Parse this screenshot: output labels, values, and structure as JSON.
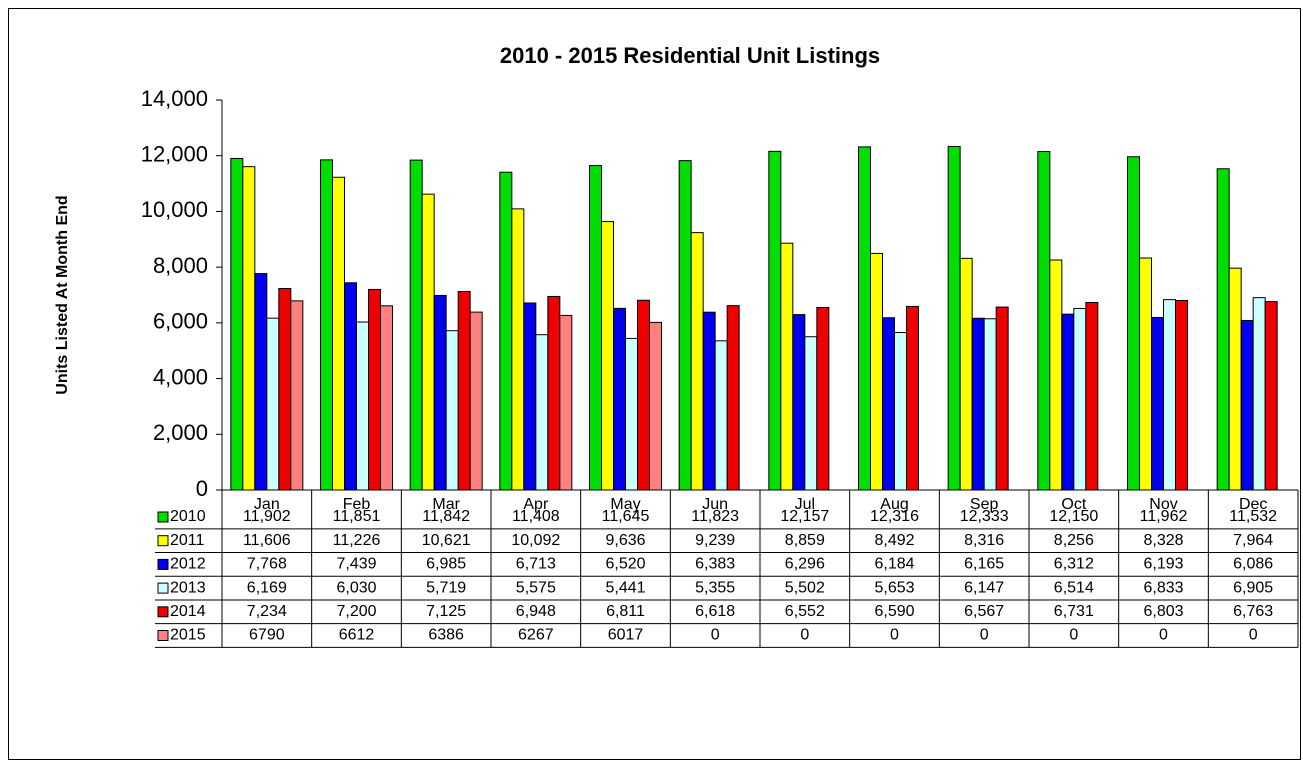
{
  "chart_data": {
    "type": "bar",
    "title": "2010 - 2015 Residential Unit Listings",
    "y_label": "Units Listed At Month End",
    "categories": [
      "Jan",
      "Feb",
      "Mar",
      "Apr",
      "May",
      "Jun",
      "Jul",
      "Aug",
      "Sep",
      "Oct",
      "Nov",
      "Dec"
    ],
    "ylim": [
      0,
      14000
    ],
    "yticks": [
      0,
      {
        "value": 2000,
        "label": "2,000"
      },
      {
        "value": 4000,
        "label": "4,000"
      },
      {
        "value": 6000,
        "label": "6,000"
      },
      {
        "value": 8000,
        "label": "8,000"
      },
      {
        "value": 10000,
        "label": "10,000"
      },
      {
        "value": 12000,
        "label": "12,000"
      },
      {
        "value": 14000,
        "label": "14,000"
      }
    ],
    "series": [
      {
        "name": "2010",
        "color": "#00dd00",
        "values": [
          11902,
          11851,
          11842,
          11408,
          11645,
          11823,
          12157,
          12316,
          12333,
          12150,
          11962,
          11532
        ],
        "value_labels": [
          "11,902",
          "11,851",
          "11,842",
          "11,408",
          "11,645",
          "11,823",
          "12,157",
          "12,316",
          "12,333",
          "12,150",
          "11,962",
          "11,532"
        ]
      },
      {
        "name": "2011",
        "color": "#ffff00",
        "values": [
          11606,
          11226,
          10621,
          10092,
          9636,
          9239,
          8859,
          8492,
          8316,
          8256,
          8328,
          7964
        ],
        "value_labels": [
          "11,606",
          "11,226",
          "10,621",
          "10,092",
          "9,636",
          "9,239",
          "8,859",
          "8,492",
          "8,316",
          "8,256",
          "8,328",
          "7,964"
        ]
      },
      {
        "name": "2012",
        "color": "#0000ee",
        "values": [
          7768,
          7439,
          6985,
          6713,
          6520,
          6383,
          6296,
          6184,
          6165,
          6312,
          6193,
          6086
        ],
        "value_labels": [
          "7,768",
          "7,439",
          "6,985",
          "6,713",
          "6,520",
          "6,383",
          "6,296",
          "6,184",
          "6,165",
          "6,312",
          "6,193",
          "6,086"
        ]
      },
      {
        "name": "2013",
        "color": "#ccffff",
        "values": [
          6169,
          6030,
          5719,
          5575,
          5441,
          5355,
          5502,
          5653,
          6147,
          6514,
          6833,
          6905
        ],
        "value_labels": [
          "6,169",
          "6,030",
          "5,719",
          "5,575",
          "5,441",
          "5,355",
          "5,502",
          "5,653",
          "6,147",
          "6,514",
          "6,833",
          "6,905"
        ]
      },
      {
        "name": "2014",
        "color": "#ee0000",
        "values": [
          7234,
          7200,
          7125,
          6948,
          6811,
          6618,
          6552,
          6590,
          6567,
          6731,
          6803,
          6763
        ],
        "value_labels": [
          "7,234",
          "7,200",
          "7,125",
          "6,948",
          "6,811",
          "6,618",
          "6,552",
          "6,590",
          "6,567",
          "6,731",
          "6,803",
          "6,763"
        ]
      },
      {
        "name": "2015",
        "color": "#ff8080",
        "values": [
          6790,
          6612,
          6386,
          6267,
          6017,
          0,
          0,
          0,
          0,
          0,
          0,
          0
        ]
      }
    ]
  }
}
